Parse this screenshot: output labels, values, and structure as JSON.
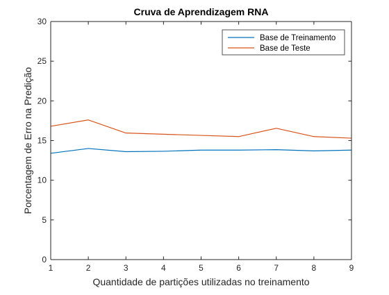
{
  "chart_data": {
    "type": "line",
    "title": "Cruva de Aprendizagem RNA",
    "xlabel": "Quantidade de partições utilizadas no treinamento",
    "ylabel": "Porcentagem de Erro na Predição",
    "x": [
      1,
      2,
      3,
      4,
      5,
      6,
      7,
      8,
      9
    ],
    "xlim": [
      1,
      9
    ],
    "ylim": [
      0,
      30
    ],
    "xticks": [
      "1",
      "2",
      "3",
      "4",
      "5",
      "6",
      "7",
      "8",
      "9"
    ],
    "yticks": [
      "0",
      "5",
      "10",
      "15",
      "20",
      "25",
      "30"
    ],
    "grid": false,
    "legend_position": "top-right",
    "series": [
      {
        "name": "Base de Treinamento",
        "color": "#0072bd",
        "values": [
          13.4,
          14.0,
          13.6,
          13.65,
          13.8,
          13.8,
          13.85,
          13.7,
          13.8
        ]
      },
      {
        "name": "Base de Teste",
        "color": "#d95319",
        "values": [
          16.8,
          17.6,
          15.95,
          15.8,
          15.65,
          15.5,
          16.55,
          15.5,
          15.3
        ]
      }
    ]
  }
}
